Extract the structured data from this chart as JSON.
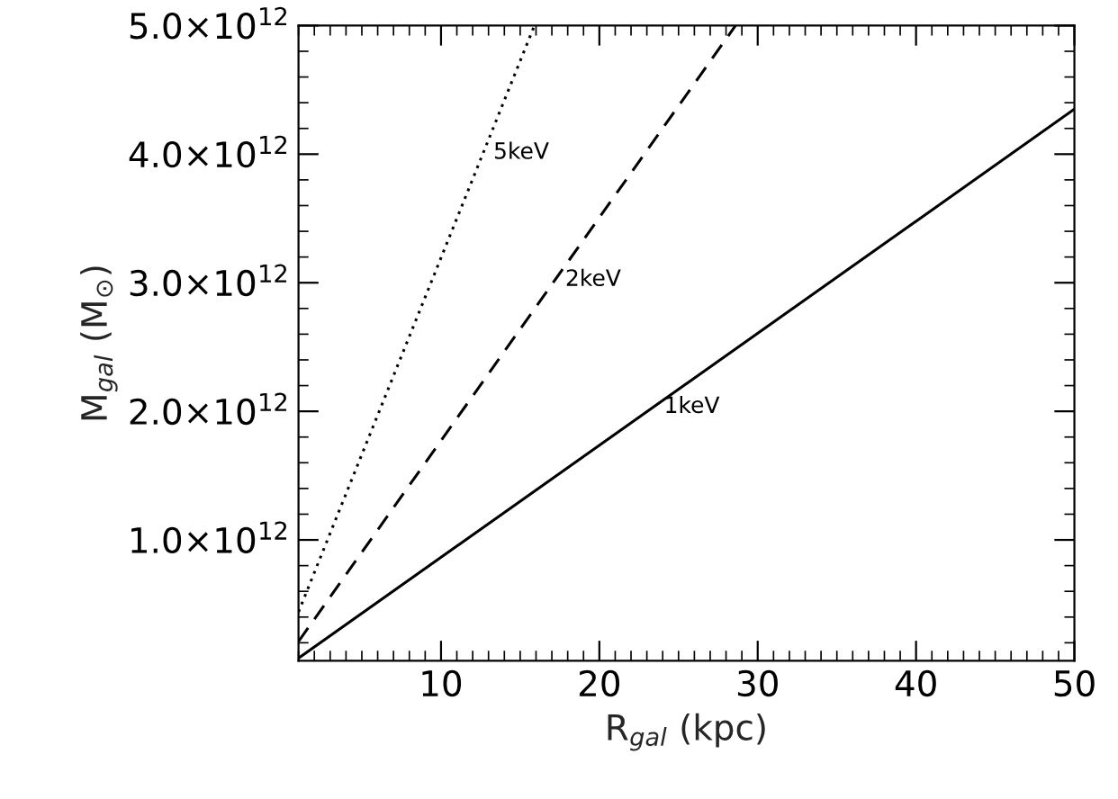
{
  "chart_data": {
    "type": "line",
    "xlabel": "R$_{gal}$ (kpc)",
    "ylabel": "M$_{gal}$ (M$_{⊙}$)",
    "series": [
      {
        "name": "1keV",
        "color": "#000000",
        "line_style": "solid",
        "x": [
          1,
          50
        ],
        "values": [
          80000000000.0,
          4350000000000.0
        ]
      },
      {
        "name": "2keV",
        "color": "#000000",
        "line_style": "dashed",
        "x": [
          1,
          28.6
        ],
        "values": [
          210000000000.0,
          5000000000000.0
        ]
      },
      {
        "name": "5keV",
        "color": "#000000",
        "line_style": "dotted",
        "x": [
          1,
          15.9
        ],
        "values": [
          440000000000.0,
          5000000000000.0
        ]
      }
    ],
    "xlim": [
      1,
      50
    ],
    "xticks": [
      10,
      20,
      30,
      40,
      50
    ],
    "ylim": [
      60000000000.0,
      5000000000000.0
    ],
    "yticks": [
      {
        "value": 1000000000000.0,
        "label": "1.0×10$^{12}$"
      },
      {
        "value": 2000000000000.0,
        "label": "2.0×10$^{12}$"
      },
      {
        "value": 3000000000000.0,
        "label": "3.0×10$^{12}$"
      },
      {
        "value": 4000000000000.0,
        "label": "4.0×10$^{12}$"
      },
      {
        "value": 5000000000000.0,
        "label": "5.0×10$^{12}$"
      }
    ],
    "grid": false,
    "legend": false
  }
}
